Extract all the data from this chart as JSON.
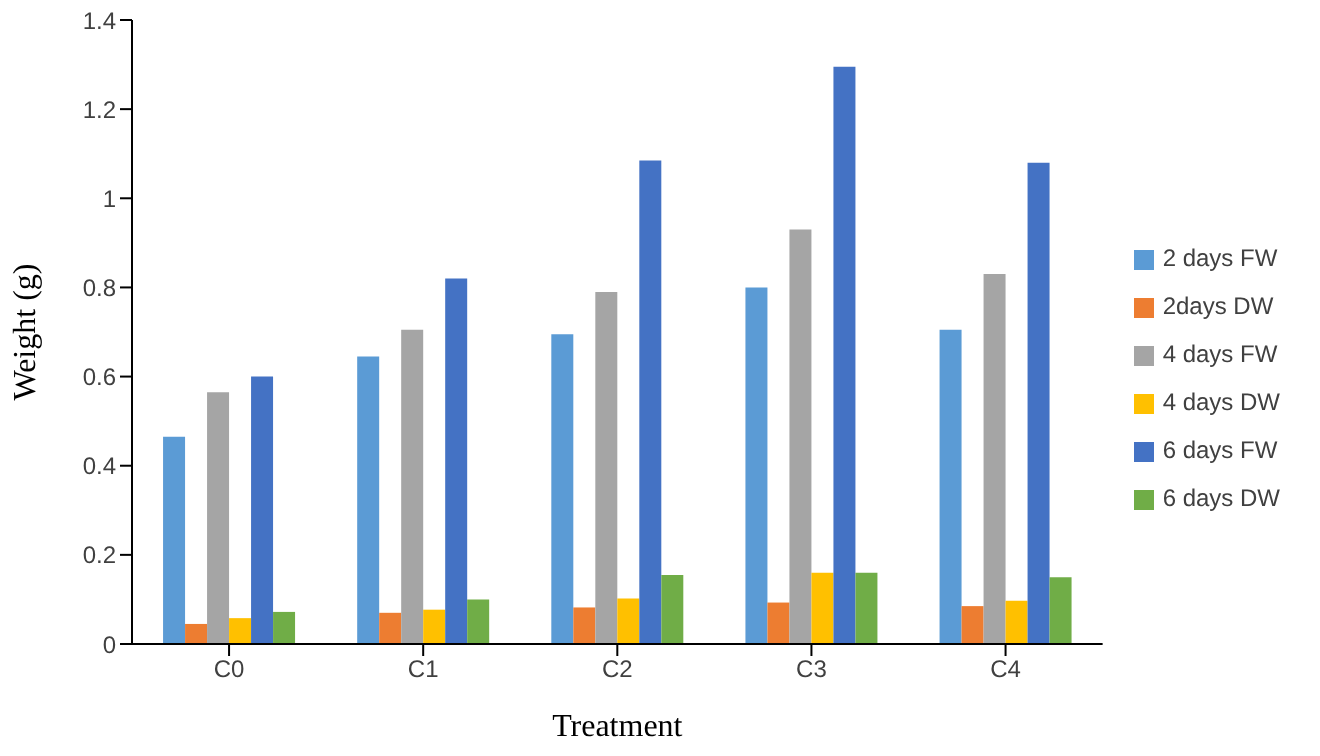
{
  "chart_data": {
    "type": "bar",
    "xlabel": "Treatment",
    "ylabel": "Weight (g)",
    "categories": [
      "C0",
      "C1",
      "C2",
      "C3",
      "C4"
    ],
    "series": [
      {
        "name": "2 days FW",
        "color": "#5b9bd5",
        "values": [
          0.465,
          0.645,
          0.695,
          0.8,
          0.705
        ]
      },
      {
        "name": "2days DW",
        "color": "#ed7d31",
        "values": [
          0.045,
          0.07,
          0.082,
          0.093,
          0.085
        ]
      },
      {
        "name": "4 days FW",
        "color": "#a5a5a5",
        "values": [
          0.565,
          0.705,
          0.79,
          0.93,
          0.83
        ]
      },
      {
        "name": "4 days DW",
        "color": "#ffc000",
        "values": [
          0.058,
          0.077,
          0.102,
          0.16,
          0.097
        ]
      },
      {
        "name": "6 days FW",
        "color": "#4472c4",
        "values": [
          0.6,
          0.82,
          1.085,
          1.295,
          1.08
        ]
      },
      {
        "name": "6 days DW",
        "color": "#70ad47",
        "values": [
          0.072,
          0.1,
          0.155,
          0.16,
          0.15
        ]
      }
    ],
    "ylim": [
      0,
      1.4
    ],
    "yticks": [
      0,
      0.2,
      0.4,
      0.6,
      0.8,
      1,
      1.2,
      1.4
    ],
    "grid": false,
    "legend": "right"
  }
}
